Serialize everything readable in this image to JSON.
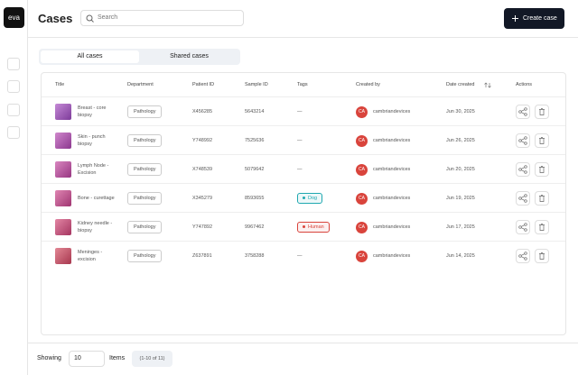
{
  "sidebar": {
    "logo": "eva"
  },
  "header": {
    "title": "Cases",
    "search_placeholder": "Search",
    "create_button": "Create case"
  },
  "tabs": [
    "All cases",
    "Shared cases"
  ],
  "table": {
    "columns": [
      "Title",
      "Department",
      "Patient ID",
      "Sample ID",
      "Tags",
      "Created by",
      "Date created",
      "Actions"
    ],
    "rows": [
      {
        "title": "Breast - core biopsy",
        "department": "Pathology",
        "patient_id": "X456285",
        "sample_id": "5643214",
        "tag": {
          "text": "—"
        },
        "initials": "CA",
        "creator": "cambriandevices",
        "date": "Jun 30, 2025"
      },
      {
        "title": "Skin - punch biopsy",
        "department": "Pathology",
        "patient_id": "Y748992",
        "sample_id": "7525636",
        "tag": {
          "text": "—"
        },
        "initials": "CA",
        "creator": "cambriandevices",
        "date": "Jun 26, 2025"
      },
      {
        "title": "Lymph Node - Excision",
        "department": "Pathology",
        "patient_id": "X748539",
        "sample_id": "5079642",
        "tag": {
          "text": "—"
        },
        "initials": "CA",
        "creator": "cambriandevices",
        "date": "Jun 20, 2025"
      },
      {
        "title": "Bone - curettage",
        "department": "Pathology",
        "patient_id": "X345279",
        "sample_id": "8593655",
        "tag": {
          "text": "Dog",
          "color": "#1fa8b0"
        },
        "initials": "CA",
        "creator": "cambriandevices",
        "date": "Jun 19, 2025"
      },
      {
        "title": "Kidney needle - biopsy",
        "department": "Pathology",
        "patient_id": "Y747892",
        "sample_id": "9967462",
        "tag": {
          "text": "Human",
          "color": "#d9443c"
        },
        "initials": "CA",
        "creator": "cambriandevices",
        "date": "Jun 17, 2025"
      },
      {
        "title": "Meninges - excision",
        "department": "Pathology",
        "patient_id": "Z637891",
        "sample_id": "3758288",
        "tag": {
          "text": "—"
        },
        "initials": "CA",
        "creator": "cambriandevices",
        "date": "Jun 14, 2025"
      }
    ]
  },
  "footer": {
    "showing": "Showing",
    "page_size": "10",
    "items": "Items",
    "range": "(1-10 of 11)"
  }
}
